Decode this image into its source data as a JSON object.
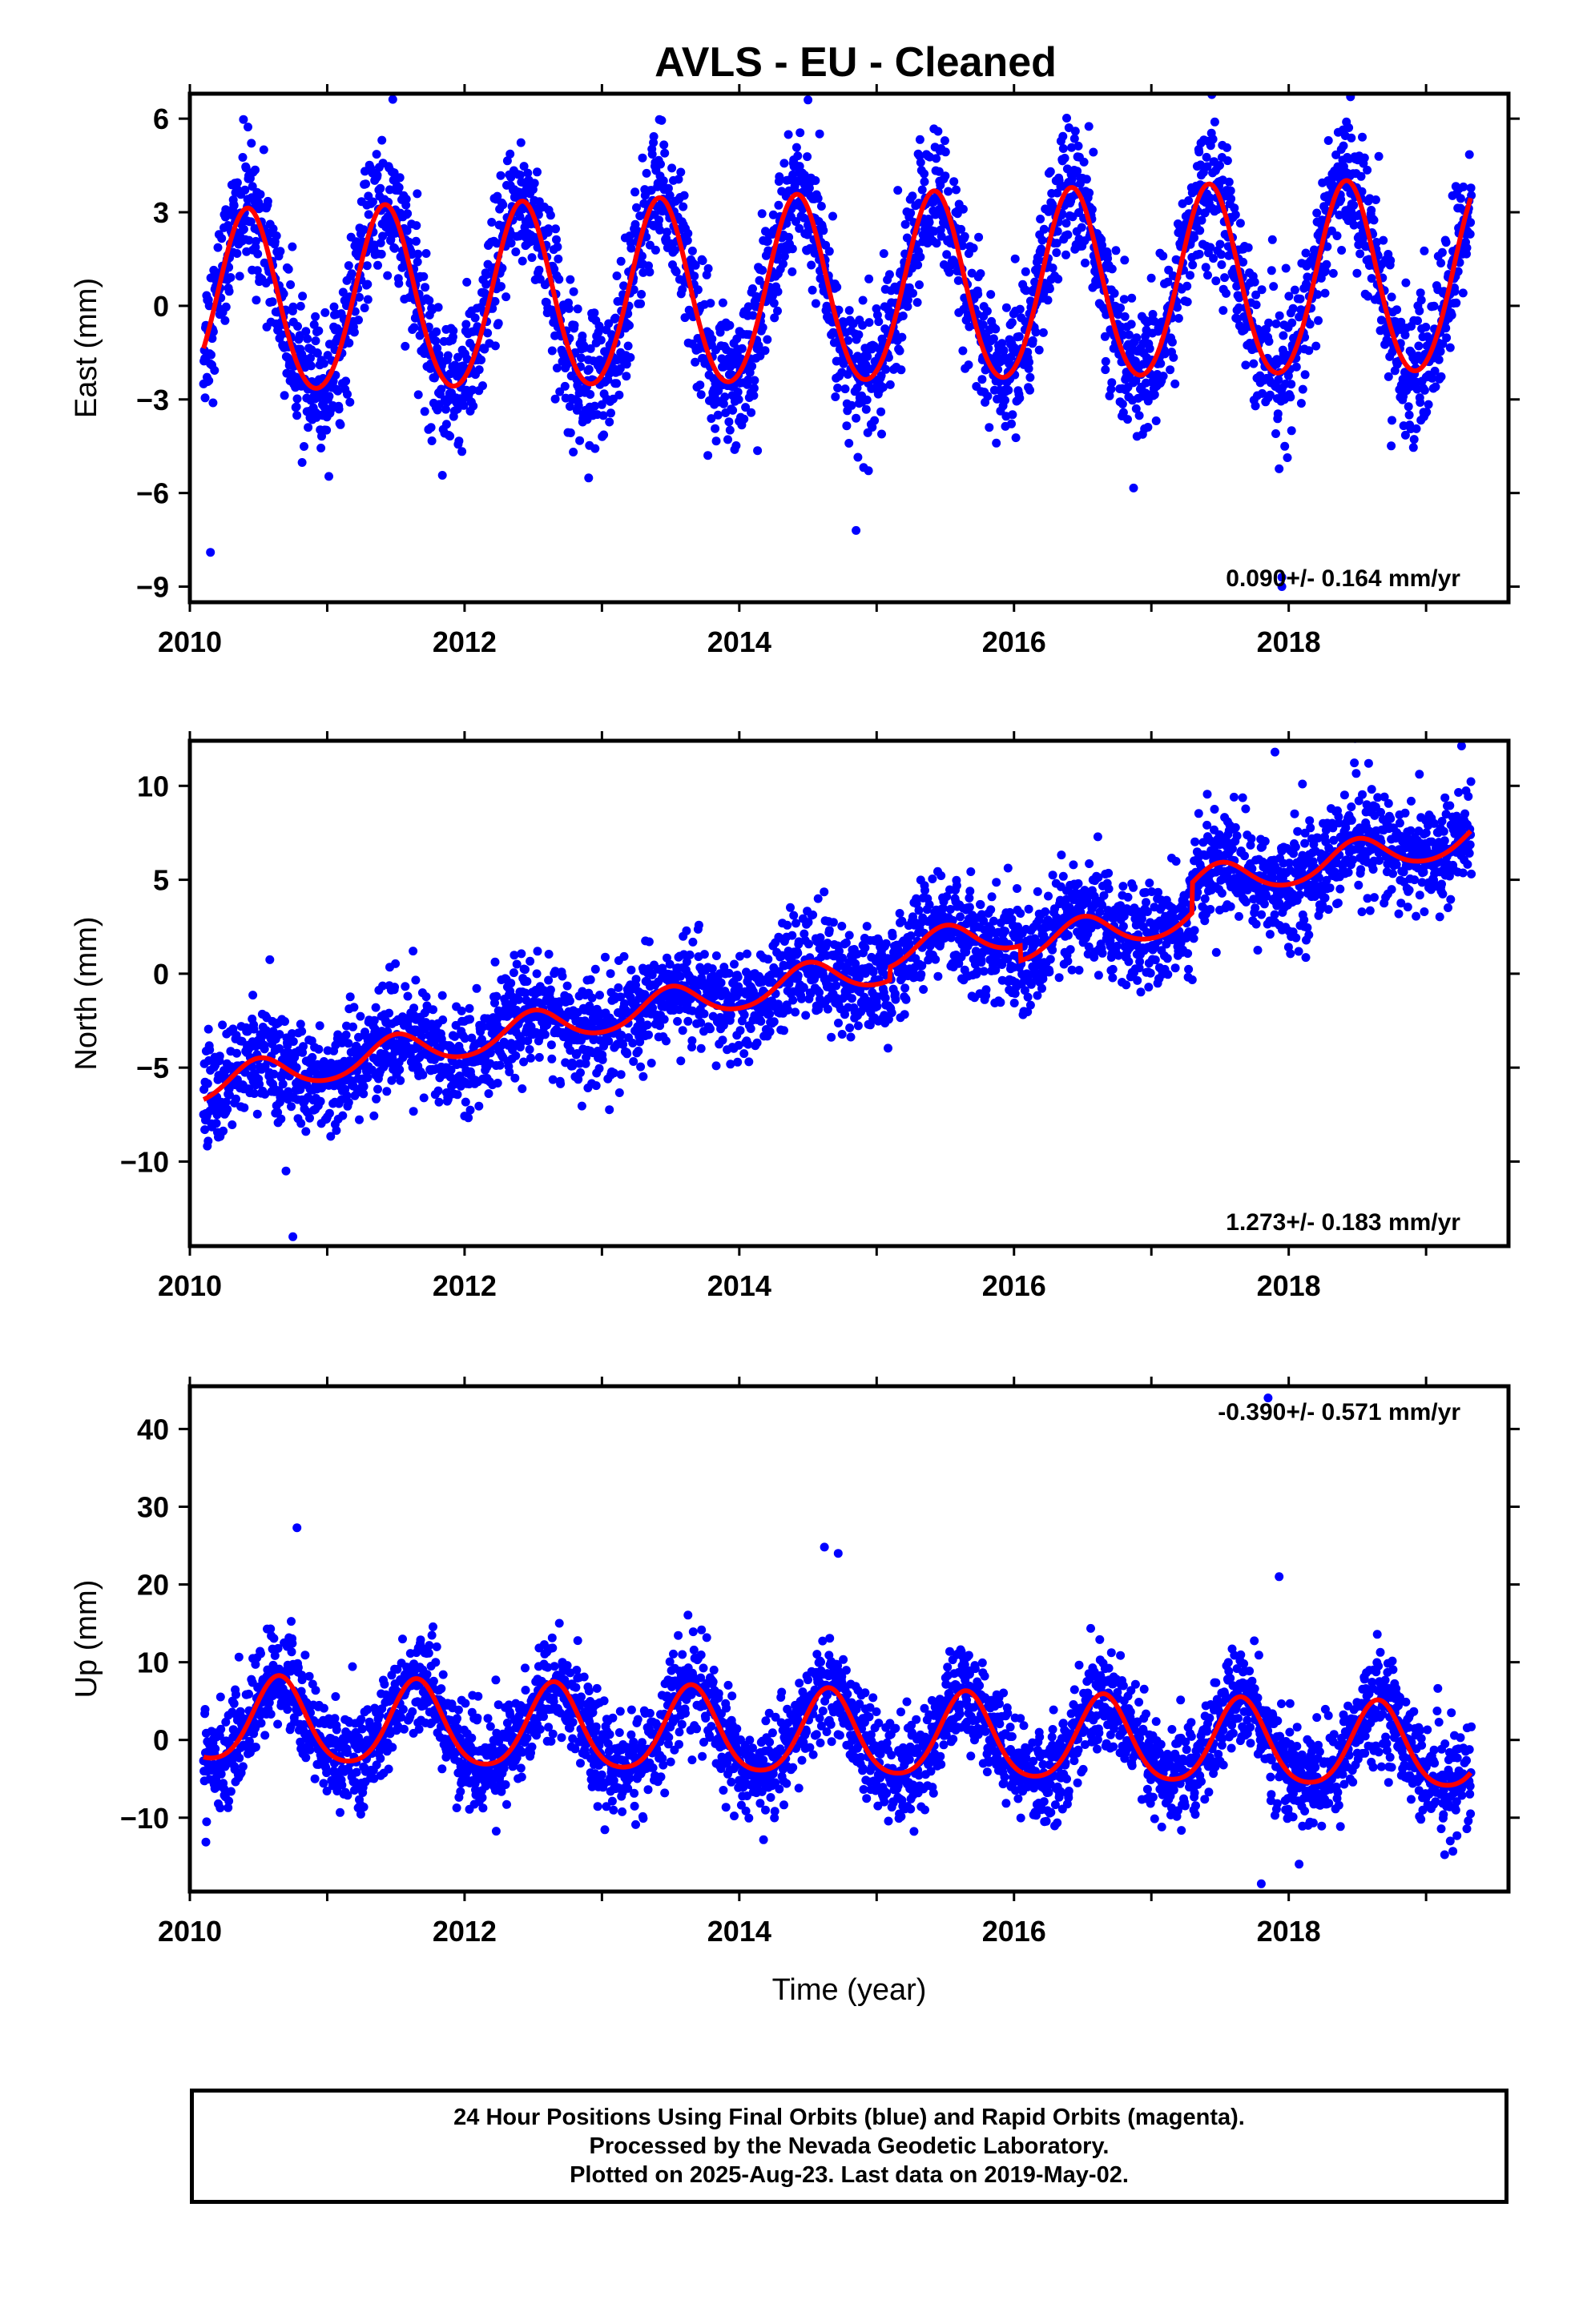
{
  "title": "AVLS  - EU - Cleaned",
  "colors": {
    "points": "#0000ff",
    "model": "#ff0000",
    "frame": "#000000"
  },
  "chart_data": [
    {
      "id": "east",
      "type": "scatter",
      "ylabel": "East (mm)",
      "xlabel": "",
      "xlim": [
        2010.0,
        2019.6
      ],
      "ylim": [
        -9.5,
        6.8
      ],
      "xticks": [
        2010,
        2012,
        2014,
        2016,
        2018
      ],
      "yticks": [
        6,
        3,
        0,
        -3,
        -6,
        -9
      ],
      "ytick_labels": [
        "6",
        "3",
        "0",
        "−3",
        "−6",
        "−9"
      ],
      "rate_text": "0.090+/- 0.164 mm/yr",
      "rate_position": "bottom-right",
      "start": 2010.1,
      "end": 2019.33,
      "model": {
        "offset": 0.0,
        "trend": 0.09,
        "amplitude": 2.9,
        "amplitude_drift": 0.02,
        "peak_phase": 0.42,
        "semi_annual": 0.2
      },
      "scatter": {
        "sigma": 1.1,
        "outliers": [
          [
            2010.15,
            -7.9
          ],
          [
            2014.5,
            6.6
          ],
          [
            2018.45,
            6.7
          ],
          [
            2017.95,
            -8.7
          ],
          [
            2014.85,
            -7.2
          ],
          [
            2017.95,
            -9.0
          ]
        ]
      }
    },
    {
      "id": "north",
      "type": "scatter",
      "ylabel": "North (mm)",
      "xlabel": "",
      "xlim": [
        2010.0,
        2019.6
      ],
      "ylim": [
        -14.5,
        12.4
      ],
      "xticks": [
        2010,
        2012,
        2014,
        2016,
        2018
      ],
      "yticks": [
        10,
        5,
        0,
        -5,
        -10
      ],
      "ytick_labels": [
        "10",
        "5",
        "0",
        "−5",
        "−10"
      ],
      "rate_text": "1.273+/- 0.183 mm/yr",
      "rate_position": "bottom-right",
      "start": 2010.1,
      "end": 2019.33,
      "model": {
        "offset": -6.0,
        "trend": 1.273,
        "amplitude": 0.9,
        "amplitude_drift": 0.0,
        "peak_phase": 0.5,
        "semi_annual": 0.1,
        "steps": [
          [
            2015.1,
            0.7
          ],
          [
            2016.05,
            -0.8
          ],
          [
            2017.3,
            1.6
          ]
        ]
      },
      "scatter": {
        "sigma": 1.4,
        "outliers": [
          [
            2010.75,
            -14.0
          ],
          [
            2017.9,
            11.8
          ],
          [
            2018.1,
            10.1
          ],
          [
            2010.7,
            -10.5
          ]
        ]
      }
    },
    {
      "id": "up",
      "type": "scatter",
      "ylabel": "Up (mm)",
      "xlabel": "Time (year)",
      "xlim": [
        2010.0,
        2019.6
      ],
      "ylim": [
        -19.5,
        45.5
      ],
      "xticks": [
        2010,
        2012,
        2014,
        2016,
        2018
      ],
      "yticks": [
        40,
        30,
        20,
        10,
        0,
        -10
      ],
      "ytick_labels": [
        "40",
        "30",
        "20",
        "10",
        "0",
        "−10"
      ],
      "rate_text": "-0.390+/- 0.571 mm/yr",
      "rate_position": "top-right",
      "start": 2010.1,
      "end": 2019.33,
      "model": {
        "offset": 2.3,
        "trend": -0.39,
        "amplitude": 5.4,
        "amplitude_drift": 0.0,
        "peak_phase": 0.65,
        "semi_annual": 0.8
      },
      "scatter": {
        "sigma": 3.2,
        "outliers": [
          [
            2010.78,
            27.3
          ],
          [
            2014.62,
            24.8
          ],
          [
            2014.72,
            24.0
          ],
          [
            2017.93,
            21.0
          ],
          [
            2017.8,
            -18.5
          ],
          [
            2017.85,
            44.0
          ]
        ]
      }
    }
  ],
  "footer": {
    "line1": "24 Hour Positions Using Final Orbits (blue) and Rapid Orbits (magenta).",
    "line2": "Processed by the Nevada Geodetic Laboratory.",
    "line3": "Plotted on 2025-Aug-23. Last data on 2019-May-02."
  }
}
